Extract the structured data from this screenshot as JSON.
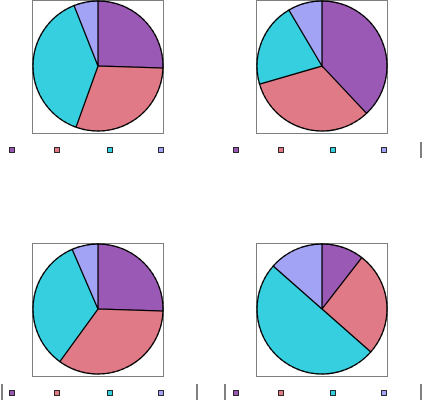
{
  "colors": {
    "purple": "#9b59b6",
    "red": "#e07a87",
    "cyan": "#35cfe0",
    "lavender": "#a3a3f5",
    "frame": "#7f7f7f",
    "outline": "#000000"
  },
  "legend": {
    "entries": [
      {
        "color": "purple",
        "label": ""
      },
      {
        "color": "red",
        "label": ""
      },
      {
        "color": "cyan",
        "label": ""
      },
      {
        "color": "lavender",
        "label": ""
      }
    ]
  },
  "chart_data": [
    {
      "type": "pie",
      "title": "",
      "position": "top-left",
      "slices": [
        {
          "color": "purple",
          "value": 25.5
        },
        {
          "color": "red",
          "value": 30.0
        },
        {
          "color": "cyan",
          "value": 38.5
        },
        {
          "color": "lavender",
          "value": 6.0
        }
      ],
      "grid": false,
      "legend": "bottom"
    },
    {
      "type": "pie",
      "title": "",
      "position": "top-right",
      "slices": [
        {
          "color": "purple",
          "value": 38.0
        },
        {
          "color": "red",
          "value": 32.5
        },
        {
          "color": "cyan",
          "value": 21.0
        },
        {
          "color": "lavender",
          "value": 8.5
        }
      ],
      "grid": false,
      "legend": "bottom"
    },
    {
      "type": "pie",
      "title": "",
      "position": "bottom-left",
      "slices": [
        {
          "color": "purple",
          "value": 25.5
        },
        {
          "color": "red",
          "value": 34.5
        },
        {
          "color": "cyan",
          "value": 33.5
        },
        {
          "color": "lavender",
          "value": 6.5
        }
      ],
      "grid": false,
      "legend": "bottom"
    },
    {
      "type": "pie",
      "title": "",
      "position": "bottom-right",
      "slices": [
        {
          "color": "purple",
          "value": 10.5
        },
        {
          "color": "red",
          "value": 26.0
        },
        {
          "color": "cyan",
          "value": 50.0
        },
        {
          "color": "lavender",
          "value": 13.5
        }
      ],
      "grid": false,
      "legend": "bottom"
    }
  ]
}
